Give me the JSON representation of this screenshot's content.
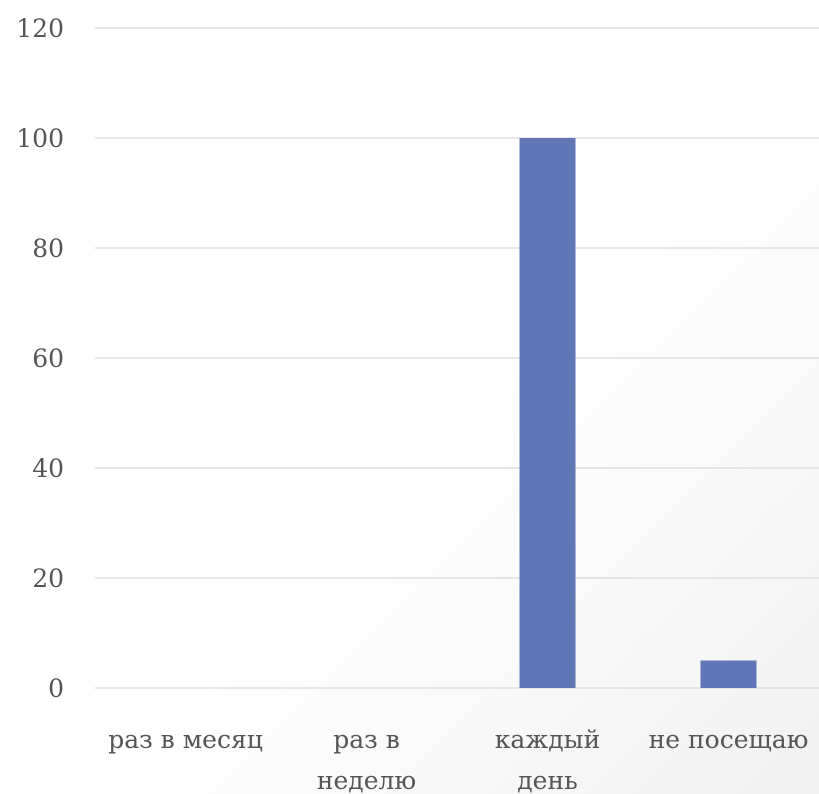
{
  "chart_data": {
    "type": "bar",
    "categories": [
      "раз в месяц",
      "раз в неделю",
      "каждый день",
      "не посещаю"
    ],
    "category_label_lines": [
      [
        "раз в месяц"
      ],
      [
        "раз в",
        "неделю"
      ],
      [
        "каждый",
        "день"
      ],
      [
        "не посещаю"
      ]
    ],
    "values": [
      0,
      0,
      100,
      5
    ],
    "ylim": [
      0,
      120
    ],
    "yticks": [
      0,
      20,
      40,
      60,
      80,
      100,
      120
    ],
    "title": "",
    "xlabel": "",
    "ylabel": "",
    "grid": true,
    "bar_color": "#6076b5",
    "grid_color": "#d9d9d9",
    "text_color": "#555555"
  }
}
